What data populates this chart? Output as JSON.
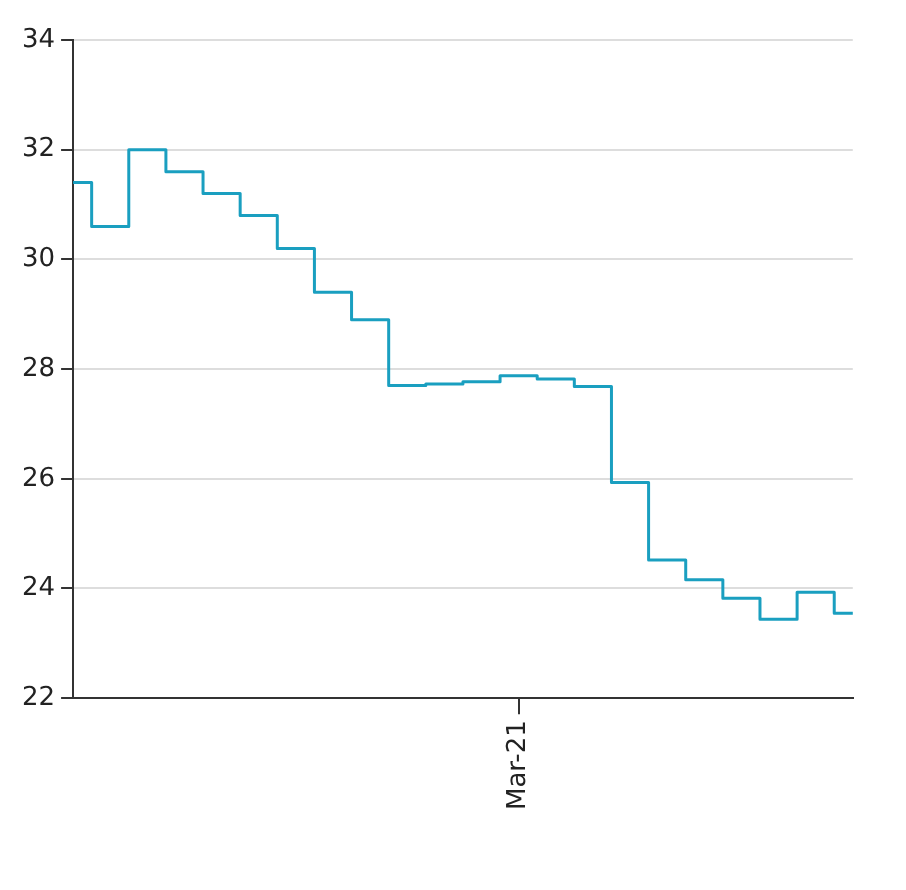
{
  "chart_data": {
    "type": "step",
    "categories": [
      null,
      null,
      null,
      null,
      null,
      null,
      null,
      null,
      null,
      null,
      null,
      null,
      "Mar-21",
      null,
      null,
      null,
      null,
      null,
      null,
      null,
      null,
      null
    ],
    "series": [
      {
        "color": "#1a9fc0",
        "values": [
          31.4,
          30.6,
          32.0,
          31.6,
          31.2,
          30.8,
          30.2,
          29.4,
          28.9,
          27.7,
          27.73,
          27.77,
          27.88,
          27.82,
          27.68,
          25.93,
          24.52,
          24.16,
          23.82,
          23.44,
          23.93,
          23.55
        ]
      }
    ],
    "ylim": [
      22,
      34
    ],
    "yticks": [
      22,
      24,
      26,
      28,
      30,
      32,
      34
    ],
    "grid": "y",
    "legend": false
  }
}
